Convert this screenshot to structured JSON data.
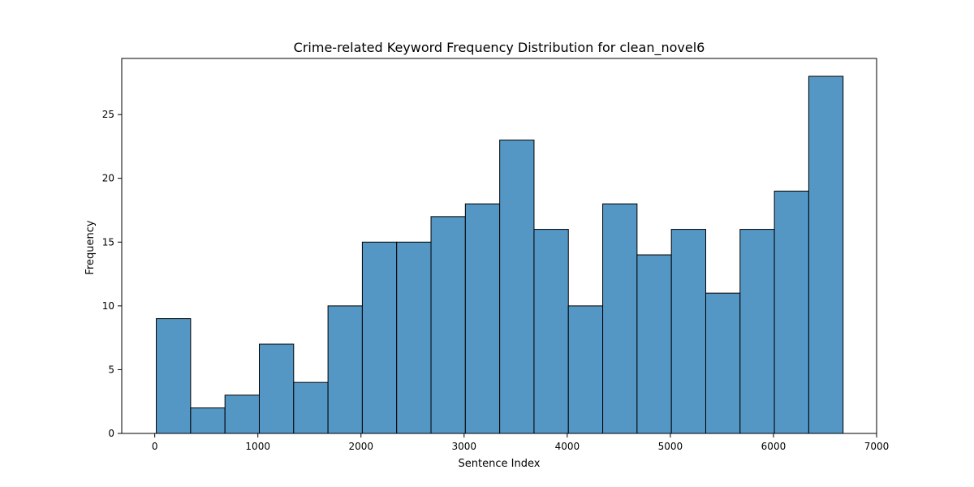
{
  "chart_data": {
    "type": "bar",
    "title": "Crime-related Keyword Frequency Distribution for clean_novel6",
    "xlabel": "Sentence Index",
    "ylabel": "Frequency",
    "xlim": [
      -320,
      7000
    ],
    "ylim": [
      0,
      29.4
    ],
    "xticks": [
      0,
      1000,
      2000,
      3000,
      4000,
      5000,
      6000,
      7000
    ],
    "yticks": [
      0,
      5,
      10,
      15,
      20,
      25
    ],
    "grid": false,
    "bar_color": "#5497c5",
    "edge_color": "#000000",
    "bins": [
      {
        "start": 15,
        "end": 348,
        "value": 9
      },
      {
        "start": 348,
        "end": 681,
        "value": 2
      },
      {
        "start": 681,
        "end": 1014,
        "value": 3
      },
      {
        "start": 1014,
        "end": 1347,
        "value": 7
      },
      {
        "start": 1347,
        "end": 1680,
        "value": 4
      },
      {
        "start": 1680,
        "end": 2013,
        "value": 10
      },
      {
        "start": 2013,
        "end": 2346,
        "value": 15
      },
      {
        "start": 2346,
        "end": 2679,
        "value": 15
      },
      {
        "start": 2679,
        "end": 3012,
        "value": 17
      },
      {
        "start": 3012,
        "end": 3345,
        "value": 18
      },
      {
        "start": 3345,
        "end": 3678,
        "value": 23
      },
      {
        "start": 3678,
        "end": 4011,
        "value": 16
      },
      {
        "start": 4011,
        "end": 4344,
        "value": 10
      },
      {
        "start": 4344,
        "end": 4677,
        "value": 18
      },
      {
        "start": 4677,
        "end": 5010,
        "value": 14
      },
      {
        "start": 5010,
        "end": 5343,
        "value": 16
      },
      {
        "start": 5343,
        "end": 5676,
        "value": 11
      },
      {
        "start": 5676,
        "end": 6009,
        "value": 16
      },
      {
        "start": 6009,
        "end": 6342,
        "value": 19
      },
      {
        "start": 6342,
        "end": 6675,
        "value": 28
      }
    ]
  }
}
